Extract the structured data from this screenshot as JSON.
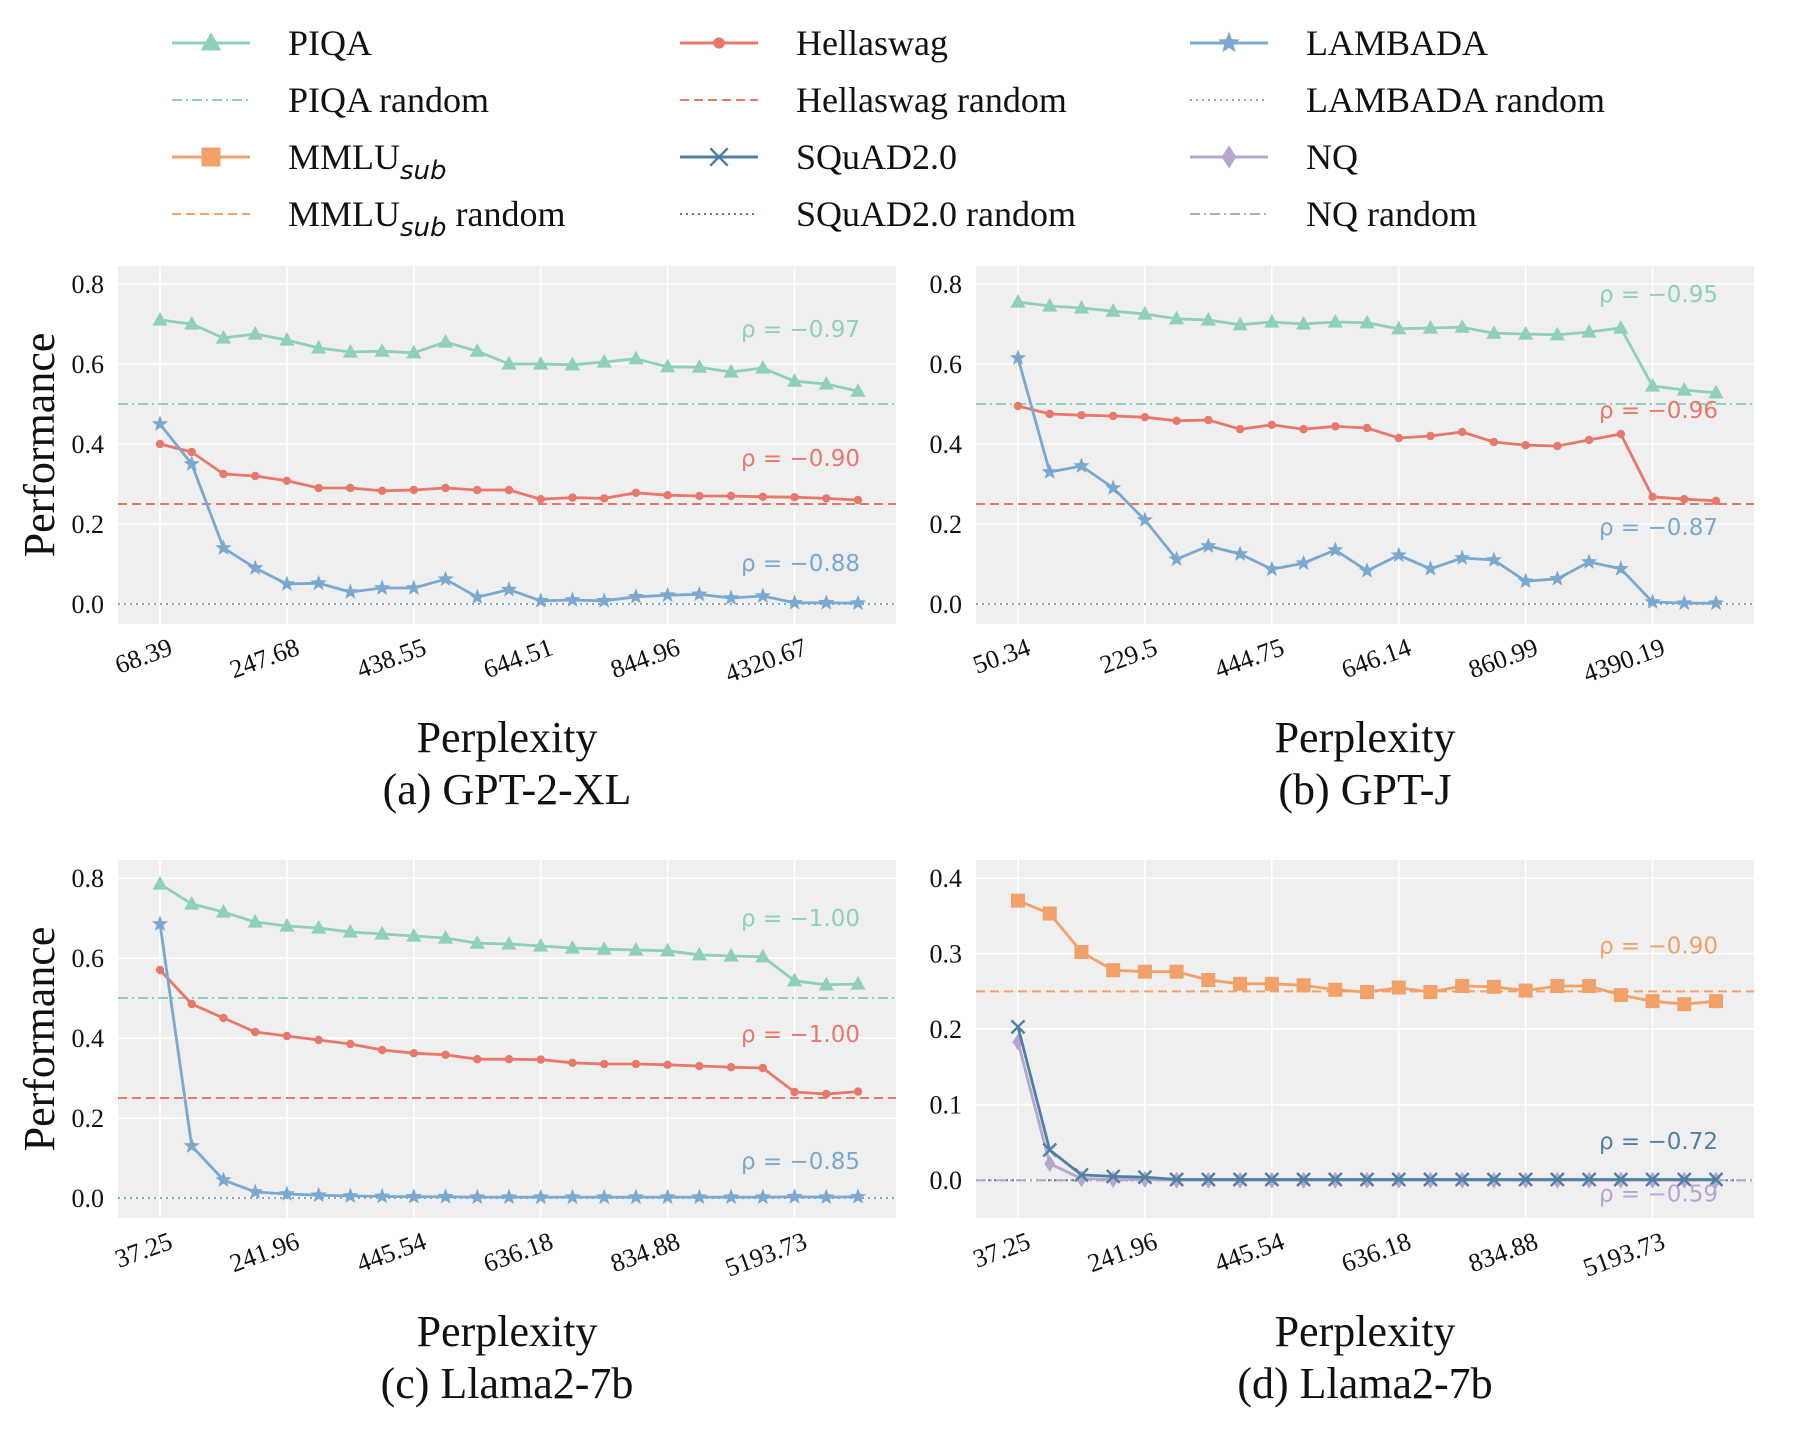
{
  "colors": {
    "PIQA": "#8fd0b8",
    "Hellaswag": "#e8786a",
    "LAMBADA": "#7aa8cf",
    "MMLU": "#f2a169",
    "SQuAD": "#4f7fa3",
    "NQ": "#b6a6cf",
    "panel_bg": "#efefef",
    "grid": "#ffffff"
  },
  "legend": {
    "rows": [
      [
        {
          "key": "PIQA",
          "label": "PIQA",
          "style": "solid",
          "marker": "triangle"
        },
        {
          "key": "Hellaswag",
          "label": "Hellaswag",
          "style": "solid",
          "marker": "dot"
        },
        {
          "key": "LAMBADA",
          "label": "LAMBADA",
          "style": "solid",
          "marker": "star"
        }
      ],
      [
        {
          "key": "PIQA",
          "label": "PIQA random",
          "style": "dashdot",
          "marker": "none"
        },
        {
          "key": "Hellaswag",
          "label": "Hellaswag random",
          "style": "dashed",
          "marker": "none"
        },
        {
          "key": "LAMBADA",
          "label": "LAMBADA random",
          "style": "dotted",
          "marker": "none"
        }
      ],
      [
        {
          "key": "MMLU",
          "label": "MMLU",
          "sub": "sub",
          "style": "solid",
          "marker": "square"
        },
        {
          "key": "SQuAD",
          "label": "SQuAD2.0",
          "style": "solid",
          "marker": "x"
        },
        {
          "key": "NQ",
          "label": "NQ",
          "style": "solid",
          "marker": "diamond"
        }
      ],
      [
        {
          "key": "MMLU",
          "label": "MMLU",
          "sub": "sub",
          "suffix": " random",
          "style": "dashed",
          "marker": "none"
        },
        {
          "key": "SQuAD",
          "label": "SQuAD2.0 random",
          "style": "dotted",
          "marker": "none"
        },
        {
          "key": "NQ",
          "label": "NQ random",
          "style": "dashdot",
          "marker": "none"
        }
      ]
    ]
  },
  "chart_data": [
    {
      "type": "line",
      "caption": "(a) GPT-2-XL",
      "xlabel": "Perplexity",
      "ylabel": "Performance",
      "ylim": [
        -0.05,
        0.8
      ],
      "yticks": [
        "0.0",
        "0.2",
        "0.4",
        "0.6",
        "0.8"
      ],
      "ytick_values": [
        0,
        0.2,
        0.4,
        0.6,
        0.8
      ],
      "n_points": 23,
      "xtick_labels": [
        "68.39",
        "247.68",
        "438.55",
        "644.51",
        "844.96",
        "4320.67"
      ],
      "xtick_indices": [
        0,
        4,
        8,
        12,
        16,
        20
      ],
      "grid": true,
      "series": [
        {
          "name": "PIQA",
          "key": "PIQA",
          "marker": "triangle",
          "values": [
            0.71,
            0.7,
            0.665,
            0.675,
            0.66,
            0.64,
            0.63,
            0.632,
            0.628,
            0.655,
            0.632,
            0.6,
            0.6,
            0.598,
            0.605,
            0.613,
            0.593,
            0.592,
            0.58,
            0.59,
            0.557,
            0.55,
            0.532
          ]
        },
        {
          "name": "Hellaswag",
          "key": "Hellaswag",
          "marker": "dot",
          "values": [
            0.4,
            0.38,
            0.325,
            0.32,
            0.308,
            0.29,
            0.29,
            0.283,
            0.285,
            0.29,
            0.285,
            0.285,
            0.262,
            0.266,
            0.264,
            0.278,
            0.272,
            0.27,
            0.27,
            0.268,
            0.267,
            0.264,
            0.26
          ]
        },
        {
          "name": "LAMBADA",
          "key": "LAMBADA",
          "marker": "star",
          "values": [
            0.45,
            0.35,
            0.14,
            0.09,
            0.05,
            0.052,
            0.03,
            0.04,
            0.04,
            0.062,
            0.017,
            0.036,
            0.008,
            0.01,
            0.008,
            0.018,
            0.022,
            0.024,
            0.015,
            0.02,
            0.003,
            0.003,
            0.002
          ]
        }
      ],
      "baselines": [
        {
          "key": "PIQA",
          "value": 0.5,
          "style": "dashdot"
        },
        {
          "key": "Hellaswag",
          "value": 0.25,
          "style": "dashed"
        },
        {
          "key": "LAMBADA",
          "value": 0.0,
          "style": "dotted"
        }
      ],
      "annotations": [
        {
          "key": "PIQA",
          "text": "ρ = −0.97",
          "value": 0.667
        },
        {
          "key": "Hellaswag",
          "text": "ρ = −0.90",
          "value": 0.345
        },
        {
          "key": "LAMBADA",
          "text": "ρ = −0.88",
          "value": 0.083
        }
      ]
    },
    {
      "type": "line",
      "caption": "(b) GPT-J",
      "xlabel": "Perplexity",
      "ylabel": "",
      "ylim": [
        -0.05,
        0.8
      ],
      "yticks": [
        "0.0",
        "0.2",
        "0.4",
        "0.6",
        "0.8"
      ],
      "ytick_values": [
        0,
        0.2,
        0.4,
        0.6,
        0.8
      ],
      "n_points": 23,
      "xtick_labels": [
        "50.34",
        "229.5",
        "444.75",
        "646.14",
        "860.99",
        "4390.19"
      ],
      "xtick_indices": [
        0,
        4,
        8,
        12,
        16,
        20
      ],
      "grid": true,
      "series": [
        {
          "name": "PIQA",
          "key": "PIQA",
          "marker": "triangle",
          "values": [
            0.755,
            0.745,
            0.74,
            0.732,
            0.725,
            0.713,
            0.71,
            0.698,
            0.705,
            0.7,
            0.705,
            0.703,
            0.688,
            0.69,
            0.692,
            0.677,
            0.675,
            0.673,
            0.68,
            0.69,
            0.545,
            0.535,
            0.528
          ]
        },
        {
          "name": "Hellaswag",
          "key": "Hellaswag",
          "marker": "dot",
          "values": [
            0.495,
            0.475,
            0.472,
            0.47,
            0.467,
            0.458,
            0.46,
            0.437,
            0.448,
            0.437,
            0.444,
            0.44,
            0.415,
            0.42,
            0.43,
            0.405,
            0.397,
            0.395,
            0.41,
            0.425,
            0.268,
            0.262,
            0.258
          ]
        },
        {
          "name": "LAMBADA",
          "key": "LAMBADA",
          "marker": "star",
          "values": [
            0.615,
            0.33,
            0.345,
            0.29,
            0.21,
            0.112,
            0.145,
            0.125,
            0.087,
            0.102,
            0.135,
            0.083,
            0.122,
            0.088,
            0.115,
            0.11,
            0.057,
            0.063,
            0.105,
            0.088,
            0.005,
            0.002,
            0.002
          ]
        }
      ],
      "baselines": [
        {
          "key": "PIQA",
          "value": 0.5,
          "style": "dashdot"
        },
        {
          "key": "Hellaswag",
          "value": 0.25,
          "style": "dashed"
        },
        {
          "key": "LAMBADA",
          "value": 0.0,
          "style": "dotted"
        }
      ],
      "annotations": [
        {
          "key": "PIQA",
          "text": "ρ = −0.95",
          "value": 0.755
        },
        {
          "key": "Hellaswag",
          "text": "ρ = −0.96",
          "value": 0.465
        },
        {
          "key": "LAMBADA",
          "text": "ρ = −0.87",
          "value": 0.172
        }
      ]
    },
    {
      "type": "line",
      "caption": "(c) Llama2-7b",
      "xlabel": "Perplexity",
      "ylabel": "Performance",
      "ylim": [
        -0.05,
        0.8
      ],
      "yticks": [
        "0.0",
        "0.2",
        "0.4",
        "0.6",
        "0.8"
      ],
      "ytick_values": [
        0,
        0.2,
        0.4,
        0.6,
        0.8
      ],
      "n_points": 23,
      "xtick_labels": [
        "37.25",
        "241.96",
        "445.54",
        "636.18",
        "834.88",
        "5193.73"
      ],
      "xtick_indices": [
        0,
        4,
        8,
        12,
        16,
        20
      ],
      "grid": true,
      "series": [
        {
          "name": "PIQA",
          "key": "PIQA",
          "marker": "triangle",
          "values": [
            0.785,
            0.735,
            0.715,
            0.69,
            0.68,
            0.675,
            0.665,
            0.66,
            0.655,
            0.65,
            0.637,
            0.635,
            0.63,
            0.625,
            0.622,
            0.62,
            0.618,
            0.608,
            0.605,
            0.603,
            0.543,
            0.533,
            0.535
          ]
        },
        {
          "name": "Hellaswag",
          "key": "Hellaswag",
          "marker": "dot",
          "values": [
            0.57,
            0.485,
            0.45,
            0.415,
            0.405,
            0.395,
            0.385,
            0.37,
            0.362,
            0.358,
            0.347,
            0.347,
            0.346,
            0.338,
            0.335,
            0.335,
            0.333,
            0.33,
            0.327,
            0.325,
            0.265,
            0.26,
            0.266
          ]
        },
        {
          "name": "LAMBADA",
          "key": "LAMBADA",
          "marker": "star",
          "values": [
            0.685,
            0.13,
            0.045,
            0.015,
            0.01,
            0.007,
            0.005,
            0.004,
            0.003,
            0.003,
            0.002,
            0.002,
            0.002,
            0.002,
            0.002,
            0.002,
            0.002,
            0.002,
            0.002,
            0.002,
            0.003,
            0.002,
            0.003
          ]
        }
      ],
      "baselines": [
        {
          "key": "PIQA",
          "value": 0.5,
          "style": "dashdot"
        },
        {
          "key": "Hellaswag",
          "value": 0.25,
          "style": "dashed"
        },
        {
          "key": "LAMBADA",
          "value": 0.0,
          "style": "dotted"
        }
      ],
      "annotations": [
        {
          "key": "PIQA",
          "text": "ρ = −1.00",
          "value": 0.68
        },
        {
          "key": "Hellaswag",
          "text": "ρ = −1.00",
          "value": 0.39
        },
        {
          "key": "LAMBADA",
          "text": "ρ = −0.85",
          "value": 0.073
        }
      ]
    },
    {
      "type": "line",
      "caption": "(d) Llama2-7b",
      "xlabel": "Perplexity",
      "ylabel": "",
      "ylim": [
        -0.05,
        0.4
      ],
      "yticks": [
        "0.0",
        "0.1",
        "0.2",
        "0.3",
        "0.4"
      ],
      "ytick_values": [
        0,
        0.1,
        0.2,
        0.3,
        0.4
      ],
      "n_points": 23,
      "xtick_labels": [
        "37.25",
        "241.96",
        "445.54",
        "636.18",
        "834.88",
        "5193.73"
      ],
      "xtick_indices": [
        0,
        4,
        8,
        12,
        16,
        20
      ],
      "grid": true,
      "series": [
        {
          "name": "MMLU_sub",
          "key": "MMLU",
          "marker": "square",
          "values": [
            0.37,
            0.353,
            0.302,
            0.278,
            0.276,
            0.276,
            0.265,
            0.26,
            0.26,
            0.258,
            0.252,
            0.249,
            0.255,
            0.249,
            0.257,
            0.256,
            0.251,
            0.257,
            0.257,
            0.245,
            0.237,
            0.233,
            0.237
          ]
        },
        {
          "name": "NQ",
          "key": "NQ",
          "marker": "diamond",
          "values": [
            0.183,
            0.022,
            0.002,
            0.001,
            0.001,
            0.0,
            0.0,
            0.0,
            0.0,
            0.0,
            0.0,
            0.0,
            0.0,
            0.0,
            0.0,
            0.0,
            0.0,
            0.0,
            0.0,
            0.0,
            0.0,
            0.0,
            0.0
          ]
        },
        {
          "name": "SQuAD2.0",
          "key": "SQuAD",
          "marker": "x",
          "values": [
            0.203,
            0.04,
            0.007,
            0.005,
            0.004,
            0.001,
            0.001,
            0.001,
            0.001,
            0.001,
            0.001,
            0.001,
            0.001,
            0.001,
            0.001,
            0.001,
            0.001,
            0.001,
            0.001,
            0.001,
            0.001,
            0.001,
            0.001
          ]
        }
      ],
      "baselines": [
        {
          "key": "MMLU",
          "value": 0.25,
          "style": "dashed"
        },
        {
          "key": "SQuAD",
          "value": 0.0,
          "style": "dotted"
        },
        {
          "key": "NQ",
          "value": 0.0,
          "style": "dashdot"
        }
      ],
      "annotations": [
        {
          "key": "MMLU",
          "text": "ρ = −0.90",
          "value": 0.3
        },
        {
          "key": "SQuAD",
          "text": "ρ = −0.72",
          "value": 0.041
        },
        {
          "key": "NQ",
          "text": "ρ = −0.59",
          "value": -0.028
        }
      ]
    }
  ]
}
